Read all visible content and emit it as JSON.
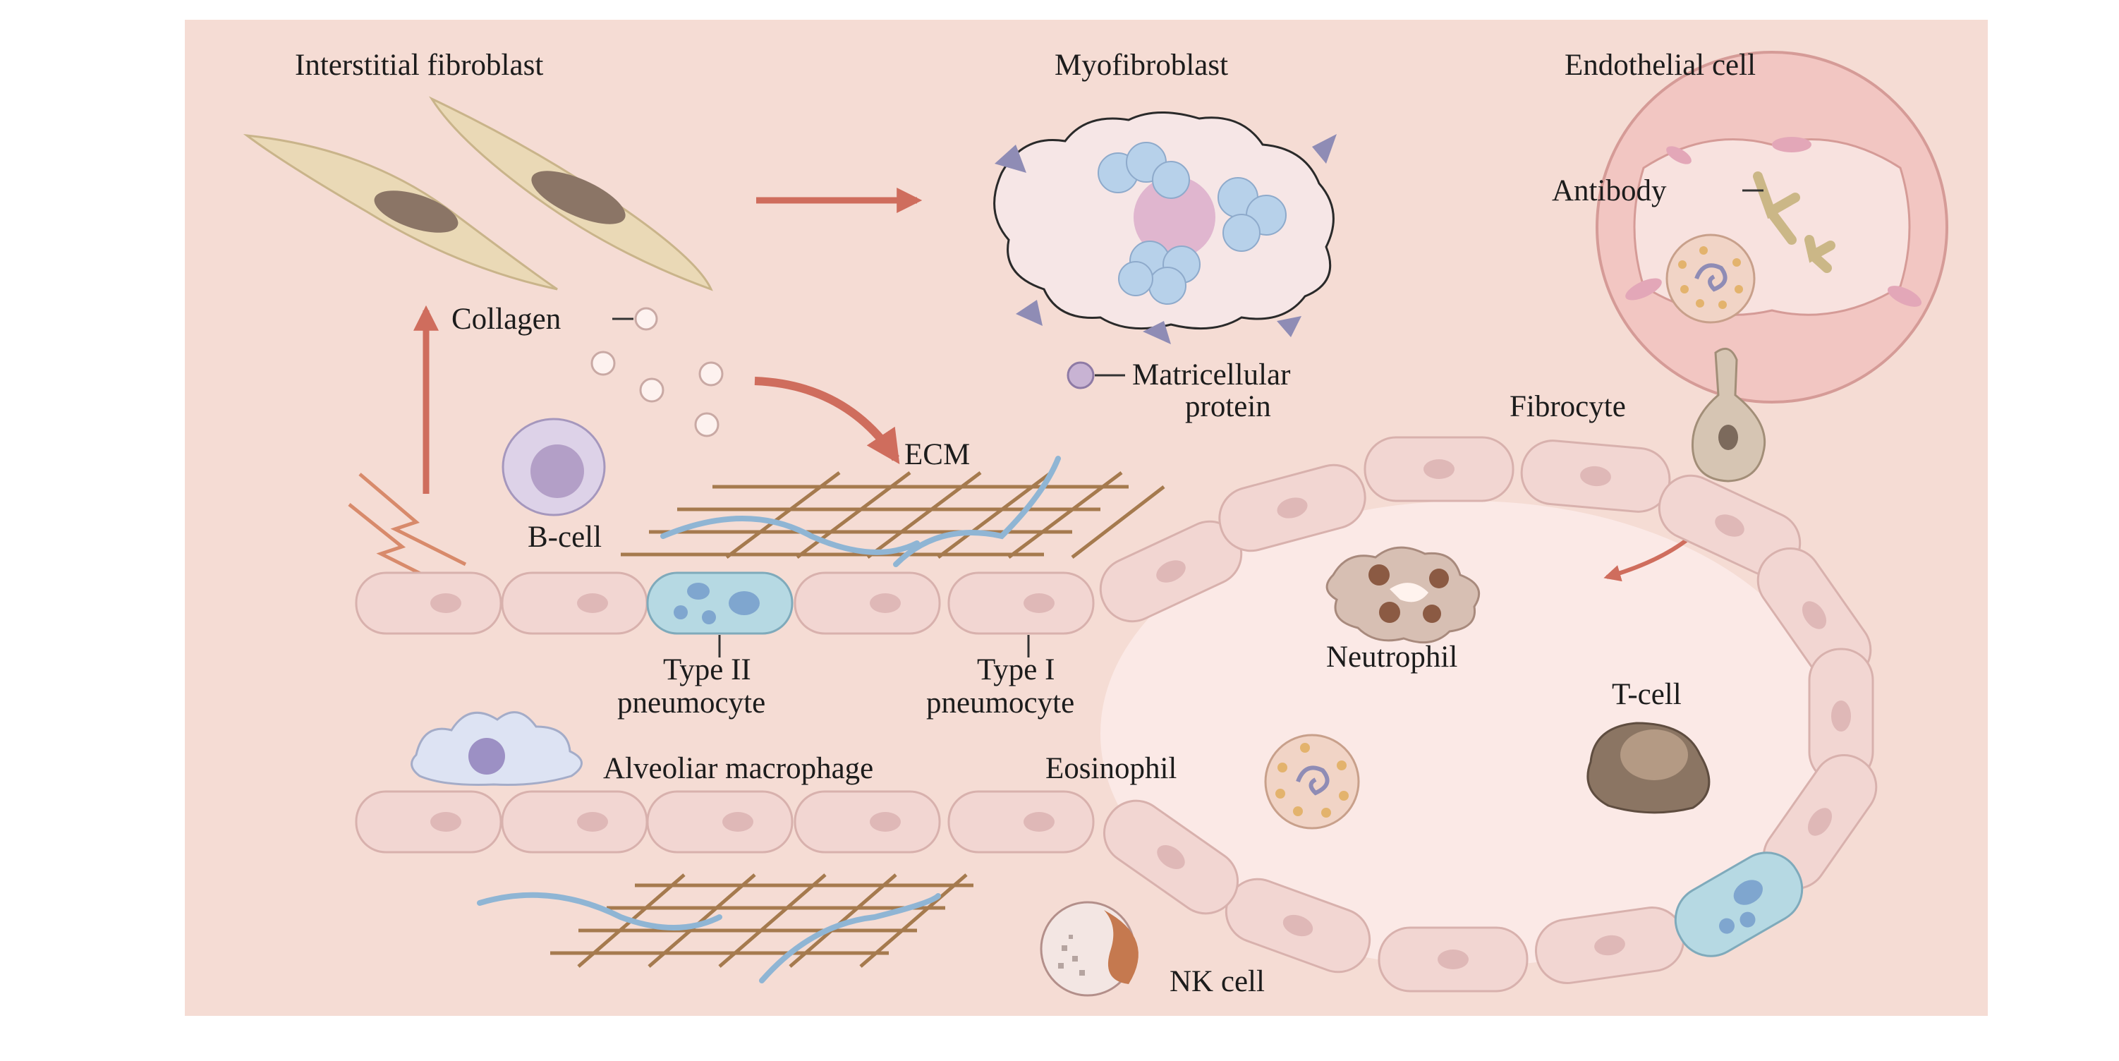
{
  "labels": {
    "interstitial_fibroblast": "Interstitial fibroblast",
    "myofibroblast": "Myofibroblast",
    "endothelial_cell": "Endothelial cell",
    "antibody": "Antibody",
    "collagen": "Collagen",
    "matricellular_line1": "Matricellular",
    "matricellular_line2": "protein",
    "fibrocyte": "Fibrocyte",
    "ecm": "ECM",
    "b_cell": "B-cell",
    "type2_line1": "Type II",
    "type2_line2": "pneumocyte",
    "type1_line1": "Type I",
    "type1_line2": "pneumocyte",
    "neutrophil": "Neutrophil",
    "t_cell": "T-cell",
    "alveolar_macrophage": "Alveoliar macrophage",
    "eosinophil": "Eosinophil",
    "nk_cell": "NK cell"
  },
  "colors": {
    "background": "#f5dcd4",
    "arrow": "#cf6d5d",
    "epithelial_cell": "#f2d6d2",
    "epithelial_nucleus": "#dfb8b7",
    "fibroblast": "#ead9b6",
    "fibroblast_nucleus": "#8b7566",
    "type2_cell": "#b6d9e3",
    "blue_granule": "#7fa6cf",
    "ecm_brown": "#a57a4e",
    "ecm_blue": "#8fb5d4",
    "b_cell": "#ddd2e8",
    "t_cell": "#8b7563",
    "myofibroblast_nucleus": "#e0b6cf",
    "myofibroblast_granule": "#b7d1ea",
    "eosinophil_granule": "#e3b36d",
    "antibody": "#cbb787"
  }
}
